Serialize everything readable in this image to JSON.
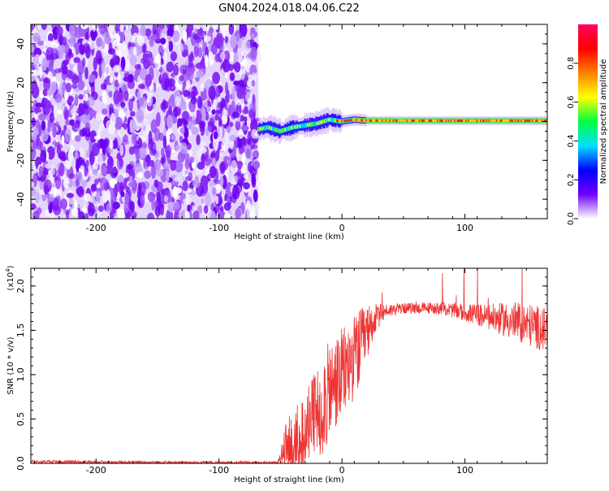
{
  "title": "GN04.2024.018.04.06.C22",
  "chart_data": [
    {
      "type": "heatmap",
      "xlabel": "Height of straight line (km)",
      "ylabel": "Frequency (Hz)",
      "xlim": [
        -253,
        167
      ],
      "ylim": [
        -50,
        50
      ],
      "x_ticks": [
        -200,
        -100,
        0,
        100
      ],
      "x_tick_labels": [
        "-200",
        "-100",
        "0",
        "100"
      ],
      "y_ticks": [
        -40,
        -20,
        0,
        20,
        40
      ],
      "y_tick_labels": [
        "-40",
        "-20",
        "0",
        "20",
        "40"
      ],
      "colorbar": {
        "label": "Normalized spectral amplitude",
        "range": [
          0,
          1
        ],
        "ticks": [
          0.0,
          0.2,
          0.4,
          0.6,
          0.8
        ],
        "tick_labels": [
          "0.0",
          "0.2",
          "0.4",
          "0.6",
          "0.8"
        ],
        "colors": [
          "#ffffff",
          "#7000ff",
          "#0000ff",
          "#00e0ff",
          "#00ff40",
          "#ffff00",
          "#ff8000",
          "#ff0000",
          "#ff0060"
        ]
      },
      "noise_region_x": [
        -253,
        -68
      ],
      "track": {
        "x": [
          -68,
          -60,
          -50,
          -40,
          -30,
          -20,
          -10,
          0,
          10,
          20,
          40,
          60,
          80,
          100,
          120,
          140,
          167
        ],
        "y": [
          -4,
          -3,
          -5,
          -3,
          -2,
          -1,
          1,
          0,
          1,
          0.5,
          0.5,
          0.4,
          0.4,
          0.4,
          0.4,
          0.4,
          0.4
        ]
      },
      "grid": false
    },
    {
      "type": "line",
      "xlabel": "Height of straight line (km)",
      "ylabel": "SNR (10 * v/v)",
      "y_scale_label": "(x10",
      "y_scale_exp": "4",
      "y_scale_close": ")",
      "xlim": [
        -253,
        167
      ],
      "ylim": [
        0,
        2.2
      ],
      "x_ticks": [
        -200,
        -100,
        0,
        100
      ],
      "x_tick_labels": [
        "-200",
        "-100",
        "0",
        "100"
      ],
      "y_ticks": [
        0,
        0.5,
        1.0,
        1.5,
        2.0
      ],
      "y_tick_labels": [
        "0.0",
        "0.5",
        "1.0",
        "1.5",
        "2.0"
      ],
      "color": "#ee3333",
      "envelope": {
        "x": [
          -253,
          -150,
          -52,
          -45,
          -30,
          -20,
          -15,
          -5,
          5,
          15,
          25,
          35,
          50,
          80,
          100,
          120,
          140,
          155,
          167
        ],
        "baseline": [
          0.02,
          0.01,
          0.01,
          0.2,
          0.4,
          0.55,
          0.7,
          0.9,
          1.1,
          1.3,
          1.6,
          1.72,
          1.75,
          1.75,
          1.7,
          1.65,
          1.6,
          1.55,
          1.5
        ],
        "spread": [
          0.02,
          0.015,
          0.015,
          0.3,
          0.45,
          0.55,
          0.6,
          0.55,
          0.5,
          0.45,
          0.2,
          0.08,
          0.06,
          0.07,
          0.1,
          0.15,
          0.22,
          0.25,
          0.25
        ]
      },
      "grid": false
    }
  ]
}
